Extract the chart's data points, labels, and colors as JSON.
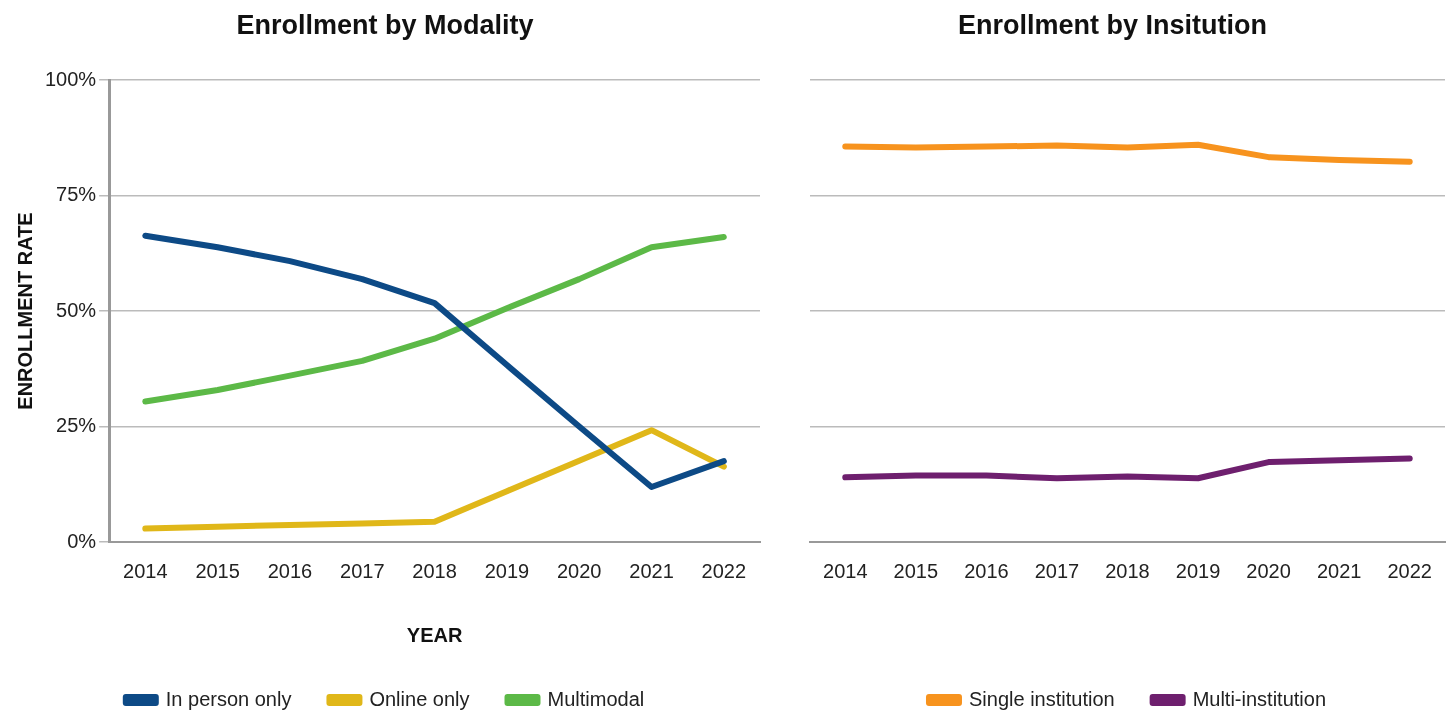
{
  "chart_data": [
    {
      "type": "line",
      "title": "Enrollment by Modality",
      "xlabel": "YEAR",
      "ylabel": "ENROLLMENT RATE",
      "categories": [
        "2014",
        "2015",
        "2016",
        "2017",
        "2018",
        "2019",
        "2020",
        "2021",
        "2022"
      ],
      "series": [
        {
          "name": "In person only",
          "color": "#0d4a86",
          "values": [
            66.3,
            63.8,
            60.8,
            56.9,
            51.7,
            38.3,
            25,
            11.9,
            17.5
          ]
        },
        {
          "name": "Online only",
          "color": "#e0b719",
          "values": [
            2.9,
            3.3,
            3.7,
            4,
            4.4,
            11,
            17.6,
            24.2,
            16.3
          ]
        },
        {
          "name": "Multimodal",
          "color": "#5cb947",
          "values": [
            30.4,
            32.9,
            36,
            39.2,
            44,
            50.6,
            56.9,
            63.8,
            66
          ]
        }
      ],
      "ylim": [
        0,
        100
      ],
      "yticks": [
        {
          "value": 0,
          "label": "0%"
        },
        {
          "value": 25,
          "label": "25%"
        },
        {
          "value": 50,
          "label": "50%"
        },
        {
          "value": 75,
          "label": "75%"
        },
        {
          "value": 100,
          "label": "100%"
        }
      ],
      "grid": "y",
      "legend": "bottom",
      "marker": "none",
      "line_style": "solid"
    },
    {
      "type": "line",
      "title": "Enrollment by Insitution",
      "categories": [
        "2014",
        "2015",
        "2016",
        "2017",
        "2018",
        "2019",
        "2020",
        "2021",
        "2022"
      ],
      "series": [
        {
          "name": "Single institution",
          "color": "#f7931e",
          "values": [
            85.6,
            85.4,
            85.6,
            85.8,
            85.4,
            86,
            83.3,
            82.7,
            82.3
          ]
        },
        {
          "name": "Multi-institution",
          "color": "#6e1f6e",
          "values": [
            14,
            14.4,
            14.4,
            13.8,
            14.2,
            13.8,
            17.3,
            17.7,
            18.1
          ]
        }
      ],
      "ylim": [
        0,
        100
      ],
      "yticks": [
        {
          "value": 0,
          "label": null
        },
        {
          "value": 25,
          "label": null
        },
        {
          "value": 50,
          "label": null
        },
        {
          "value": 75,
          "label": null
        },
        {
          "value": 100,
          "label": null
        }
      ],
      "grid": "y",
      "legend": "bottom",
      "marker": "none",
      "line_style": "solid",
      "tick_labels": "x"
    }
  ]
}
